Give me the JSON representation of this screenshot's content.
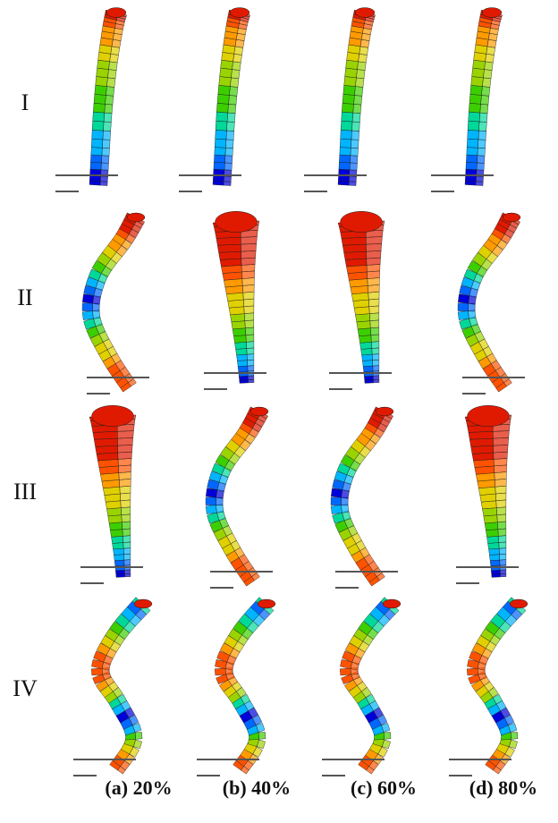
{
  "row_labels": [
    "I",
    "II",
    "III",
    "IV"
  ],
  "column_labels": [
    "(a)  20%",
    "(b)  40%",
    "(c)  60%",
    "(d)  80%"
  ],
  "cells": [
    {
      "row": "I",
      "column": "(a)  20%",
      "mode": "slight-bend"
    },
    {
      "row": "I",
      "column": "(b)  40%",
      "mode": "slight-bend"
    },
    {
      "row": "I",
      "column": "(c)  60%",
      "mode": "slight-bend"
    },
    {
      "row": "I",
      "column": "(d)  80%",
      "mode": "slight-bend"
    },
    {
      "row": "II",
      "column": "(a)  20%",
      "mode": "c-bend"
    },
    {
      "row": "II",
      "column": "(b)  40%",
      "mode": "torsion-wide"
    },
    {
      "row": "II",
      "column": "(c)  60%",
      "mode": "torsion-wide"
    },
    {
      "row": "II",
      "column": "(d)  80%",
      "mode": "c-bend"
    },
    {
      "row": "III",
      "column": "(a)  20%",
      "mode": "torsion-wide"
    },
    {
      "row": "III",
      "column": "(b)  40%",
      "mode": "c-bend"
    },
    {
      "row": "III",
      "column": "(c)  60%",
      "mode": "c-bend"
    },
    {
      "row": "III",
      "column": "(d)  80%",
      "mode": "torsion-wide"
    },
    {
      "row": "IV",
      "column": "(a)  20%",
      "mode": "s-bend"
    },
    {
      "row": "IV",
      "column": "(b)  40%",
      "mode": "s-bend"
    },
    {
      "row": "IV",
      "column": "(c)  60%",
      "mode": "s-bend"
    },
    {
      "row": "IV",
      "column": "(d)  80%",
      "mode": "s-bend"
    }
  ],
  "colormap": [
    "#0000d8",
    "#0068ff",
    "#00b4ff",
    "#00d89a",
    "#3ccf00",
    "#9ad400",
    "#e0d000",
    "#ff9a00",
    "#ff5200",
    "#e01a00"
  ]
}
